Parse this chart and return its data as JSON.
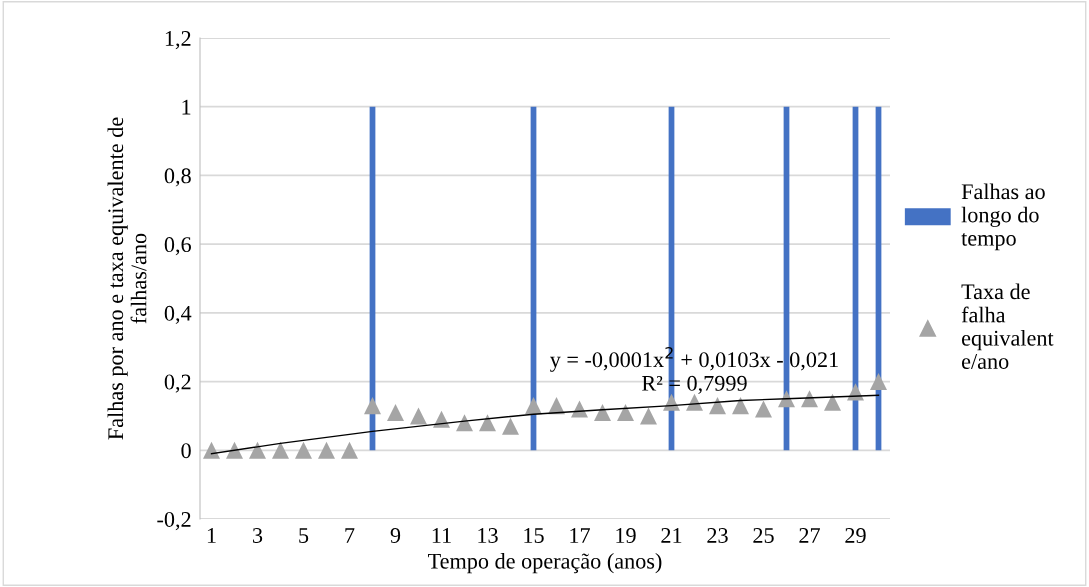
{
  "chart_data": {
    "type": "bar",
    "xlabel": "Tempo de operação (anos)",
    "ylabel": "Falhas por ano e taxa equivalente de falhas/ano",
    "x": [
      1,
      2,
      3,
      4,
      5,
      6,
      7,
      8,
      9,
      10,
      11,
      12,
      13,
      14,
      15,
      16,
      17,
      18,
      19,
      20,
      21,
      22,
      23,
      24,
      25,
      26,
      27,
      28,
      29,
      30
    ],
    "series": [
      {
        "name": "Falhas ao longo do tempo",
        "color": "#4472c4",
        "values": [
          0,
          0,
          0,
          0,
          0,
          0,
          0,
          1,
          0,
          0,
          0,
          0,
          0,
          0,
          1,
          0,
          0,
          0,
          0,
          0,
          1,
          0,
          0,
          0,
          0,
          1,
          0,
          0,
          1,
          1
        ]
      },
      {
        "name": "Taxa de falha equivalente/ano",
        "type": "scatter",
        "marker": "triangle",
        "color": "#a5a5a5",
        "values": [
          0,
          0,
          0,
          0,
          0,
          0,
          0,
          0.13,
          0.11,
          0.1,
          0.09,
          0.08,
          0.08,
          0.07,
          0.13,
          0.13,
          0.12,
          0.11,
          0.11,
          0.1,
          0.14,
          0.14,
          0.13,
          0.13,
          0.12,
          0.15,
          0.15,
          0.14,
          0.17,
          0.2
        ]
      },
      {
        "type": "line",
        "color": "#000000",
        "x": [
          1,
          4,
          8,
          12,
          15,
          18,
          21,
          24,
          26,
          30
        ],
        "values": [
          -0.01,
          0.02,
          0.055,
          0.085,
          0.105,
          0.118,
          0.13,
          0.145,
          0.15,
          0.16
        ]
      }
    ],
    "annotations": [
      {
        "text": "y = -0,0001x$^{2}$ + 0,0103x - 0,021\nR² = 0,7999",
        "x": 22,
        "y": 0.16
      }
    ],
    "xlim": [
      0.5,
      30.5
    ],
    "xticks": [
      1,
      3,
      5,
      7,
      9,
      11,
      13,
      15,
      17,
      19,
      21,
      23,
      25,
      27,
      29
    ],
    "ylim": [
      -0.2,
      1.2
    ],
    "yticks": [
      {
        "value": -0.2,
        "label": "-0,2"
      },
      0,
      {
        "value": 0.2,
        "label": "0,2"
      },
      {
        "value": 0.4,
        "label": "0,4"
      },
      {
        "value": 0.6,
        "label": "0,6"
      },
      {
        "value": 0.8,
        "label": "0,8"
      },
      1,
      {
        "value": 1.2,
        "label": "1,2"
      }
    ],
    "grid": "y",
    "legend": "right"
  }
}
